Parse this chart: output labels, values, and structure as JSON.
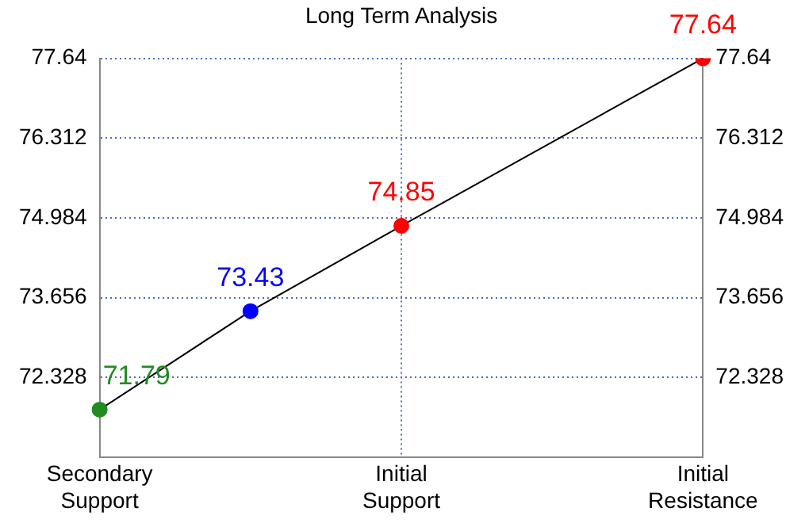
{
  "chart_data": {
    "type": "line",
    "title": "Long Term Analysis",
    "categories": [
      "Secondary\nSupport",
      null,
      "Initial\nSupport",
      null,
      "Initial\nResistance"
    ],
    "series": [
      {
        "color": "#000000",
        "colors": [
          "#228b22",
          "#0000ff",
          "#ff0000",
          null,
          "#ff0000"
        ],
        "values": [
          71.79,
          73.43,
          74.85,
          null,
          77.64
        ]
      }
    ],
    "ylim": [
      71,
      77.64
    ],
    "yticks": [
      72.328,
      73.656,
      74.984,
      76.312,
      77.64
    ],
    "y2lim": [
      71,
      77.64
    ],
    "y2ticks": [
      72.328,
      73.656,
      74.984,
      76.312,
      77.64
    ],
    "grid": true,
    "legend": false,
    "marker": "circle",
    "line_style": "solid",
    "data_labels": true
  }
}
